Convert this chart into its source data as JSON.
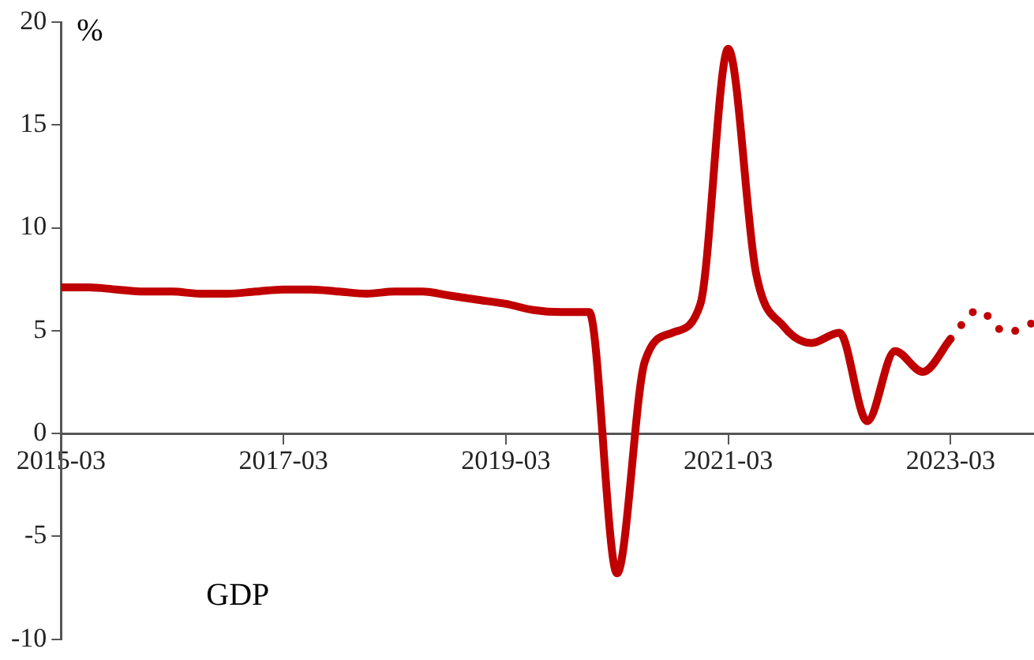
{
  "chart_data": {
    "type": "line",
    "ylabel": "%",
    "annotations": [
      "GDP"
    ],
    "xlim": [
      "2015-03",
      "2023-12"
    ],
    "xticks": [
      "2015-03",
      "2017-03",
      "2019-03",
      "2021-03",
      "2023-03"
    ],
    "ylim": [
      -10,
      20
    ],
    "yticks": [
      -10,
      -5,
      0,
      5,
      10,
      15,
      20
    ],
    "grid": false,
    "legend": false,
    "series": [
      {
        "color": "#c00000",
        "line_style": "solid",
        "x": [
          "2015-03",
          "2015-06",
          "2015-09",
          "2015-12",
          "2016-03",
          "2016-06",
          "2016-09",
          "2016-12",
          "2017-03",
          "2017-06",
          "2017-09",
          "2017-12",
          "2018-03",
          "2018-06",
          "2018-09",
          "2018-12",
          "2019-03",
          "2019-06",
          "2019-09",
          "2019-12",
          "2020-03",
          "2020-06",
          "2020-09",
          "2020-12",
          "2021-03",
          "2021-06",
          "2021-09",
          "2021-12",
          "2022-03",
          "2022-06",
          "2022-09",
          "2022-12",
          "2023-03"
        ],
        "values": [
          7.1,
          7.1,
          7.0,
          6.9,
          6.9,
          6.8,
          6.8,
          6.9,
          7.0,
          7.0,
          6.9,
          6.8,
          6.9,
          6.9,
          6.7,
          6.5,
          6.3,
          6.0,
          5.9,
          5.9,
          -6.8,
          3.5,
          4.9,
          6.3,
          18.7,
          7.8,
          5.2,
          4.4,
          4.9,
          0.6,
          4.0,
          3.0,
          4.6
        ]
      },
      {
        "color": "#c00000",
        "line_style": "dotted",
        "x": [
          "2023-03",
          "2023-06",
          "2023-09",
          "2023-12"
        ],
        "values": [
          4.6,
          6.0,
          4.9,
          5.4
        ]
      }
    ]
  }
}
